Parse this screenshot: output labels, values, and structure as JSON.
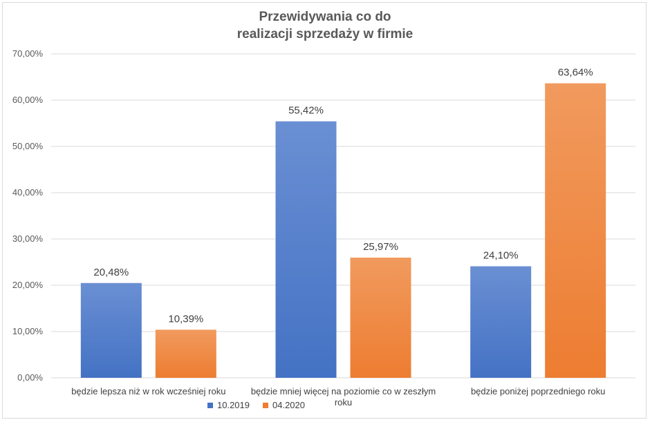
{
  "chart_data": {
    "type": "bar",
    "title_lines": [
      "Przewidywania co do",
      "realizacji sprzedaży w firmie"
    ],
    "categories": [
      [
        "będzie lepsza niż w rok wcześniej roku"
      ],
      [
        "będzie mniej więcej na poziomie co w zeszłym",
        "roku"
      ],
      [
        "będzie poniżej poprzedniego roku"
      ]
    ],
    "series": [
      {
        "name": "10.2019",
        "values": [
          20.48,
          55.42,
          24.1
        ],
        "labels": [
          "20,48%",
          "55,42%",
          "24,10%"
        ],
        "color": "#4472c4",
        "color_light": "#6a8fd3"
      },
      {
        "name": "04.2020",
        "values": [
          10.39,
          25.97,
          63.64
        ],
        "labels": [
          "10,39%",
          "25,97%",
          "63,64%"
        ],
        "color": "#ed7d31",
        "color_light": "#f19a5e"
      }
    ],
    "ylim": [
      0,
      70
    ],
    "yticks": [
      0,
      10,
      20,
      30,
      40,
      50,
      60,
      70
    ],
    "ytick_labels": [
      "0,00%",
      "10,00%",
      "20,00%",
      "30,00%",
      "40,00%",
      "50,00%",
      "60,00%",
      "70,00%"
    ],
    "grid": true,
    "legend_position": "bottom"
  }
}
